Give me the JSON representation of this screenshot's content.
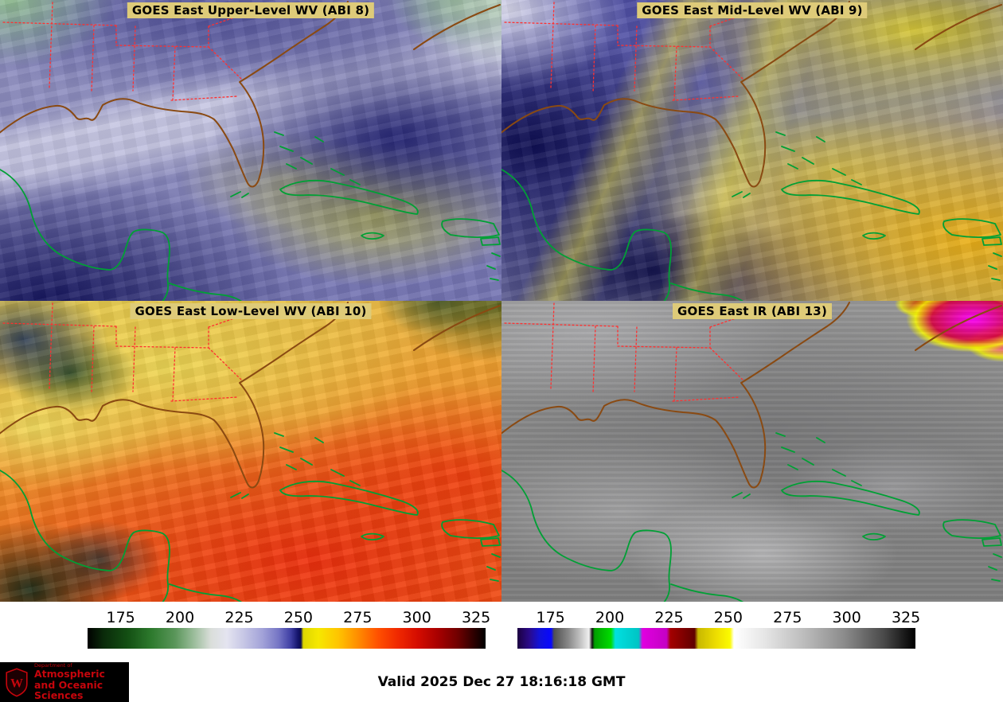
{
  "panels": [
    {
      "title": "GOES East Upper-Level WV (ABI 8)"
    },
    {
      "title": "GOES East Mid-Level WV (ABI 9)"
    },
    {
      "title": "GOES East Low-Level WV (ABI 10)"
    },
    {
      "title": "GOES East IR (ABI 13)"
    }
  ],
  "colorbars": [
    {
      "name": "water-vapor-colorbar",
      "domain": [
        161,
        329
      ],
      "ticks": [
        175,
        200,
        225,
        250,
        275,
        300,
        325
      ],
      "stops": [
        [
          "0%",
          "#000000"
        ],
        [
          "4%",
          "#0a2a0a"
        ],
        [
          "10%",
          "#134f13"
        ],
        [
          "16%",
          "#2d7a2d"
        ],
        [
          "22%",
          "#5a965a"
        ],
        [
          "27%",
          "#9fbf9f"
        ],
        [
          "31%",
          "#dadeda"
        ],
        [
          "35%",
          "#e4e4f0"
        ],
        [
          "39%",
          "#c8c8e6"
        ],
        [
          "44%",
          "#a2a2d8"
        ],
        [
          "48%",
          "#7575c5"
        ],
        [
          "51%",
          "#4040a5"
        ],
        [
          "52.8%",
          "#16166e"
        ],
        [
          "53.6%",
          "#0c0c50"
        ],
        [
          "54.2%",
          "#ddd600"
        ],
        [
          "58%",
          "#f6e800"
        ],
        [
          "63%",
          "#ffc400"
        ],
        [
          "68%",
          "#ff8c00"
        ],
        [
          "73%",
          "#ff5000"
        ],
        [
          "78%",
          "#f02800"
        ],
        [
          "83%",
          "#d40c00"
        ],
        [
          "88%",
          "#a80000"
        ],
        [
          "93%",
          "#700000"
        ],
        [
          "97%",
          "#2e0000"
        ],
        [
          "100%",
          "#000000"
        ]
      ]
    },
    {
      "name": "infrared-colorbar",
      "domain": [
        161,
        329
      ],
      "ticks": [
        175,
        200,
        225,
        250,
        275,
        300,
        325
      ],
      "stops": [
        [
          "0%",
          "#1c0040"
        ],
        [
          "3%",
          "#2a0a8a"
        ],
        [
          "5.5%",
          "#1212d8"
        ],
        [
          "8.5%",
          "#0808ff"
        ],
        [
          "9.2%",
          "#505050"
        ],
        [
          "13%",
          "#8c8c8c"
        ],
        [
          "16%",
          "#c6c6c6"
        ],
        [
          "18%",
          "#f0f0f0"
        ],
        [
          "18.8%",
          "#101010"
        ],
        [
          "19.4%",
          "#00a000"
        ],
        [
          "23.5%",
          "#00dc00"
        ],
        [
          "24.6%",
          "#00e0e0"
        ],
        [
          "30.5%",
          "#00c4c4"
        ],
        [
          "31.4%",
          "#e000e0"
        ],
        [
          "37.5%",
          "#c400c4"
        ],
        [
          "38.4%",
          "#a40000"
        ],
        [
          "44.5%",
          "#600000"
        ],
        [
          "45.4%",
          "#c8b800"
        ],
        [
          "50%",
          "#eede00"
        ],
        [
          "53.4%",
          "#fbfb00"
        ],
        [
          "54.4%",
          "#ffffff"
        ],
        [
          "62%",
          "#e6e6e6"
        ],
        [
          "72%",
          "#bcbcbc"
        ],
        [
          "82%",
          "#8c8c8c"
        ],
        [
          "92%",
          "#4a4a4a"
        ],
        [
          "100%",
          "#000000"
        ]
      ]
    }
  ],
  "footer": {
    "valid_time": "Valid 2025 Dec 27 18:16:18 GMT",
    "logo": {
      "monogram": "W",
      "line0": "Department of",
      "line1": "Atmospheric",
      "line2": "and Oceanic Sciences"
    }
  },
  "colors": {
    "title_bg": "#decb79",
    "state_border": "#ff3030",
    "coastline": "#8a4a12",
    "island_coast": "#00a035",
    "logo_red": "#c5050c",
    "valid_text": "#000000"
  }
}
